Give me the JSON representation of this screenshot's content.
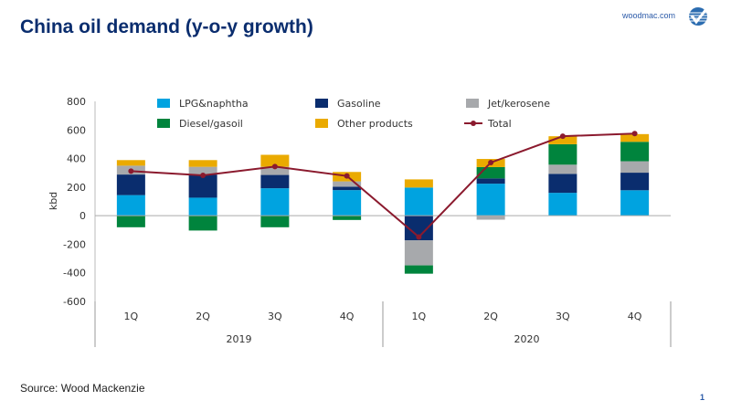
{
  "header": {
    "title": "China oil demand (y-o-y growth)",
    "site": "woodmac.com"
  },
  "footer": {
    "source": "Source: Wood Mackenzie",
    "page_number": "1"
  },
  "chart_data": {
    "type": "stacked-bar+line",
    "ylabel": "kbd",
    "ylim": [
      -600,
      800
    ],
    "yticks": [
      800,
      600,
      400,
      200,
      0,
      -200,
      -400,
      -600
    ],
    "ytick_labels": [
      "800",
      "600",
      "400",
      "200",
      "0",
      "-200",
      "-400",
      "-600"
    ],
    "categories": [
      "1Q",
      "2Q",
      "3Q",
      "4Q",
      "1Q",
      "2Q",
      "3Q",
      "4Q"
    ],
    "groups": [
      {
        "label": "2019",
        "span": 4
      },
      {
        "label": "2020",
        "span": 4
      }
    ],
    "legend_position": "top",
    "series": [
      {
        "name": "LPG&naphtha",
        "color": "#00a3e0",
        "values": [
          144,
          126,
          192,
          179,
          197,
          224,
          160,
          178
        ]
      },
      {
        "name": "Gasoline",
        "color": "#0a2d6e",
        "values": [
          144,
          162,
          93,
          24,
          -173,
          37,
          133,
          123
        ]
      },
      {
        "name": "Jet/kerosene",
        "color": "#a7a9ac",
        "values": [
          62,
          54,
          57,
          37,
          -175,
          -28,
          64,
          80
        ]
      },
      {
        "name": "Diesel/gasoil",
        "color": "#00843d",
        "values": [
          -81,
          -104,
          -81,
          -30,
          -58,
          79,
          143,
          136
        ]
      },
      {
        "name": "Other products",
        "color": "#eaaa00",
        "values": [
          39,
          47,
          84,
          66,
          57,
          57,
          56,
          54
        ]
      }
    ],
    "line": {
      "name": "Total",
      "color": "#8b1a2e",
      "values": [
        312,
        282,
        344,
        278,
        -149,
        372,
        556,
        575
      ]
    }
  }
}
